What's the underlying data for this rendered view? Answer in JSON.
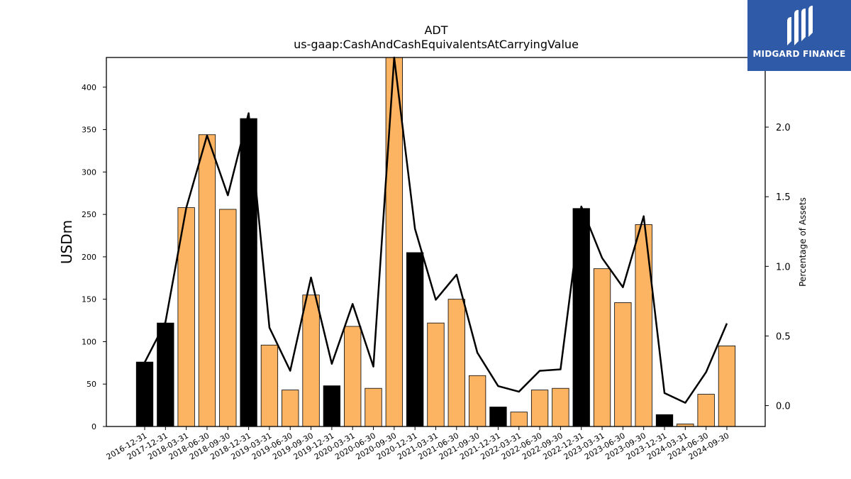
{
  "chart_data": {
    "type": "bar",
    "title": "ADT",
    "subtitle": "us-gaap:CashAndCashEquivalentsAtCarryingValue",
    "ylabel": "USDm",
    "y2label": "Percentage of Assets",
    "ylim": [
      0,
      435
    ],
    "y2lim": [
      -0.15,
      2.5
    ],
    "yticks": [
      0,
      50,
      100,
      150,
      200,
      250,
      300,
      350,
      400
    ],
    "y2ticks": [
      0.0,
      0.5,
      1.0,
      1.5,
      2.0
    ],
    "categories": [
      "2016-12-31",
      "2017-12-31",
      "2018-03-31",
      "2018-06-30",
      "2018-09-30",
      "2018-12-31",
      "2019-03-31",
      "2019-06-30",
      "2019-09-30",
      "2019-12-31",
      "2020-03-31",
      "2020-06-30",
      "2020-09-30",
      "2020-12-31",
      "2021-03-31",
      "2021-06-30",
      "2021-09-30",
      "2021-12-31",
      "2022-03-31",
      "2022-06-30",
      "2022-09-30",
      "2022-12-31",
      "2023-03-31",
      "2023-06-30",
      "2023-09-30",
      "2023-12-31",
      "2024-03-31",
      "2024-06-30",
      "2024-09-30"
    ],
    "values": [
      76,
      122,
      258,
      344,
      256,
      363,
      96,
      43,
      155,
      48,
      118,
      45,
      440,
      205,
      122,
      150,
      60,
      23,
      17,
      43,
      45,
      257,
      186,
      146,
      238,
      14,
      3,
      38,
      95
    ],
    "annual": [
      true,
      true,
      false,
      false,
      false,
      true,
      false,
      false,
      false,
      true,
      false,
      false,
      false,
      true,
      false,
      false,
      false,
      true,
      false,
      false,
      false,
      true,
      false,
      false,
      false,
      true,
      false,
      false,
      false
    ],
    "pct_assets": [
      0.31,
      0.6,
      1.42,
      1.94,
      1.51,
      2.1,
      0.56,
      0.25,
      0.92,
      0.3,
      0.73,
      0.28,
      2.5,
      1.27,
      0.76,
      0.94,
      0.38,
      0.14,
      0.1,
      0.25,
      0.26,
      1.43,
      1.06,
      0.85,
      1.36,
      0.09,
      0.02,
      0.24,
      0.59
    ],
    "colors": {
      "annual": "#000000",
      "quarter": "#fdb462",
      "line": "#000000",
      "edge": "#000000"
    },
    "grid": false,
    "legend": "none"
  },
  "logo": {
    "brand": "MIDGARD FINANCE",
    "bg": "#2f5aa8"
  }
}
